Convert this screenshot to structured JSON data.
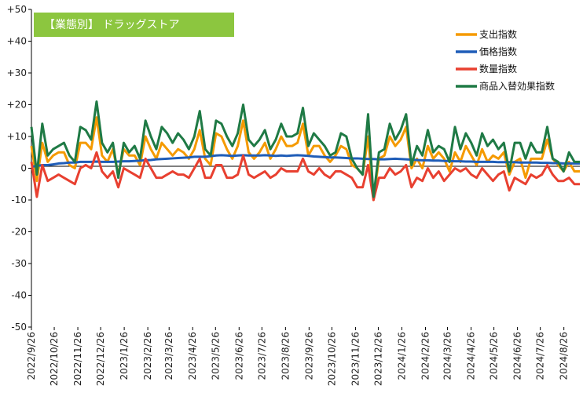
{
  "chart_data": {
    "type": "line",
    "title": "【業態別】 ドラッグストア",
    "ylim": [
      -50,
      50
    ],
    "y_ticks": [
      "+50",
      "+40",
      "+30",
      "+20",
      "+10",
      "0",
      "-10",
      "-20",
      "-30",
      "-40",
      "-50"
    ],
    "x_ticks": [
      "2022/9/26",
      "2022/10/26",
      "2022/11/26",
      "2022/12/26",
      "2023/1/26",
      "2023/2/26",
      "2023/3/26",
      "2023/4/26",
      "2023/5/26",
      "2023/6/26",
      "2023/7/26",
      "2023/8/26",
      "2023/9/26",
      "2023/10/26",
      "2023/11/26",
      "2023/12/26",
      "2024/1/26",
      "2024/2/26",
      "2024/3/26",
      "2024/4/26",
      "2024/5/26",
      "2024/6/26",
      "2024/7/26",
      "2024/8/26"
    ],
    "x_start": "2022-09-26",
    "x_end": "2024-09-16",
    "grid": false,
    "legend_position": "top-right",
    "series": [
      {
        "name": "支出指数",
        "color": "#f59a00",
        "values": [
          7,
          -4,
          8,
          2,
          4,
          5,
          5,
          1,
          0,
          8,
          8,
          6,
          16,
          4,
          2,
          6,
          -2,
          6,
          4,
          4,
          1,
          10,
          6,
          3,
          8,
          6,
          4,
          6,
          5,
          3,
          6,
          12,
          3,
          1,
          11,
          10,
          6,
          3,
          7,
          15,
          5,
          3,
          5,
          8,
          3,
          6,
          10,
          7,
          7,
          8,
          14,
          4,
          7,
          7,
          4,
          2,
          4,
          7,
          6,
          1,
          0,
          -2,
          10,
          -10,
          3,
          4,
          10,
          7,
          9,
          13,
          0,
          3,
          0,
          7,
          3,
          5,
          3,
          -1,
          5,
          2,
          7,
          4,
          1,
          6,
          2,
          4,
          3,
          5,
          -2,
          2,
          3,
          -3,
          3,
          3,
          3,
          9,
          3,
          1,
          -1,
          2,
          -1,
          -1
        ]
      },
      {
        "name": "価格指数",
        "color": "#1f5db8",
        "values": [
          0.5,
          0.7,
          1,
          1,
          1.2,
          1.5,
          1.6,
          1.8,
          1.8,
          2,
          2,
          2,
          2.1,
          2,
          2,
          2,
          2.1,
          2.2,
          2.2,
          2.3,
          2.4,
          2.5,
          2.6,
          2.8,
          2.9,
          3,
          3.1,
          3.2,
          3.3,
          3.4,
          3.6,
          3.6,
          3.6,
          3.8,
          4,
          4.1,
          4,
          3.9,
          4,
          4.1,
          4,
          4,
          4,
          4.1,
          4,
          3.9,
          4,
          3.9,
          4,
          4.1,
          4,
          3.9,
          3.7,
          3.6,
          3.5,
          3.4,
          3.4,
          3.3,
          3.2,
          3.1,
          3.1,
          3,
          2.9,
          2.9,
          2.8,
          2.8,
          2.9,
          3,
          2.9,
          2.8,
          2.7,
          2.6,
          2.5,
          2.5,
          2.4,
          2.4,
          2.3,
          2.3,
          2.2,
          2.2,
          2.1,
          2.1,
          2,
          2,
          2,
          2,
          1.9,
          1.9,
          1.9,
          1.9,
          1.8,
          1.8,
          1.8,
          1.8,
          1.7,
          1.7,
          1.6,
          1.6,
          1.5,
          1.5,
          1.5,
          1.5
        ]
      },
      {
        "name": "数量指数",
        "color": "#e84030",
        "values": [
          2,
          -9,
          1,
          -4,
          -3,
          -2,
          -3,
          -4,
          -5,
          0,
          1,
          0,
          5,
          -1,
          -3,
          -1,
          -6,
          0,
          -1,
          -2,
          -3,
          3,
          0,
          -3,
          -3,
          -2,
          -1,
          -2,
          -2,
          -3,
          0,
          3,
          -3,
          -3,
          1,
          1,
          -3,
          -3,
          -2,
          4,
          -2,
          -3,
          -2,
          -1,
          -3,
          -2,
          0,
          -1,
          -1,
          -1,
          3,
          -1,
          -2,
          0,
          -2,
          -3,
          -1,
          -1,
          -2,
          -3,
          -6,
          -6,
          1,
          -10,
          -3,
          -3,
          0,
          -2,
          -1,
          1,
          -6,
          -3,
          -4,
          0,
          -3,
          -1,
          -4,
          -2,
          0,
          -1,
          0,
          -2,
          -3,
          0,
          -2,
          -4,
          -2,
          -1,
          -7,
          -3,
          -4,
          -5,
          -2,
          -3,
          -2,
          1,
          -2,
          -4,
          -4,
          -3,
          -5,
          -5
        ]
      },
      {
        "name": "商品入替効果指数",
        "color": "#1f7a45",
        "values": [
          13,
          -2,
          14,
          4,
          6,
          7,
          8,
          4,
          2,
          13,
          12,
          9,
          21,
          8,
          5,
          8,
          -3,
          8,
          5,
          7,
          3,
          15,
          10,
          6,
          13,
          11,
          8,
          11,
          9,
          6,
          10,
          18,
          6,
          4,
          15,
          14,
          10,
          7,
          11,
          20,
          9,
          7,
          9,
          12,
          6,
          9,
          14,
          10,
          10,
          11,
          19,
          7,
          11,
          9,
          7,
          4,
          5,
          11,
          10,
          3,
          0,
          -2,
          17,
          -9,
          5,
          6,
          14,
          9,
          12,
          17,
          1,
          7,
          4,
          12,
          5,
          7,
          6,
          2,
          13,
          6,
          11,
          8,
          4,
          11,
          7,
          9,
          6,
          8,
          -1,
          8,
          8,
          3,
          8,
          5,
          5,
          13,
          3,
          2,
          -1,
          5,
          2,
          2
        ]
      }
    ]
  }
}
